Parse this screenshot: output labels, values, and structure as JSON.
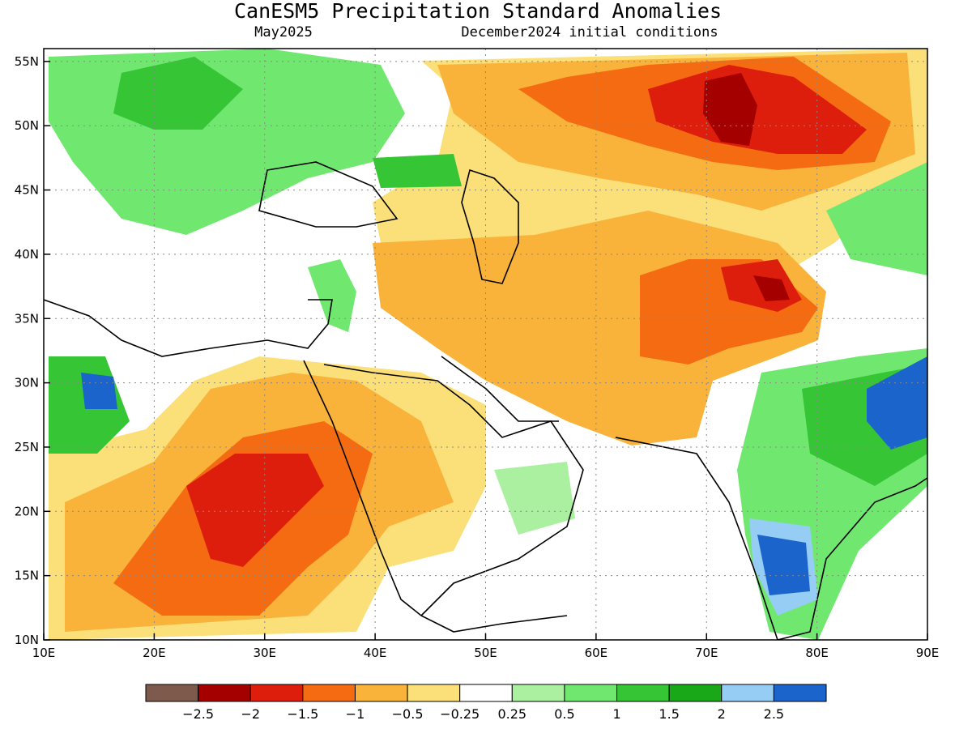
{
  "title": "CanESM5 Precipitation Standard Anomalies",
  "subtitle_left": "May2025",
  "subtitle_right": "December2024 initial conditions",
  "map": {
    "lon_range": [
      10,
      90
    ],
    "lat_range": [
      10,
      56
    ],
    "lon_ticks": [
      "10E",
      "20E",
      "30E",
      "40E",
      "50E",
      "60E",
      "70E",
      "80E",
      "90E"
    ],
    "lat_ticks": [
      "10N",
      "15N",
      "20N",
      "25N",
      "30N",
      "35N",
      "40N",
      "45N",
      "50N",
      "55N"
    ],
    "lon_tick_values": [
      10,
      20,
      30,
      40,
      50,
      60,
      70,
      80,
      90
    ],
    "lat_tick_values": [
      10,
      15,
      20,
      25,
      30,
      35,
      40,
      45,
      50,
      55
    ],
    "grid": "dotted"
  },
  "colorbar": {
    "colors": [
      "#7d5a4c",
      "#a40000",
      "#de1e0c",
      "#f56b12",
      "#f9b23a",
      "#fbe07a",
      "#ffffff",
      "#aaf0a0",
      "#70e870",
      "#35c535",
      "#18a818",
      "#95cdf5",
      "#1a64cc"
    ],
    "labels": [
      "-2.5",
      "-2",
      "-1.5",
      "-1",
      "-0.5",
      "-0.25",
      "0.25",
      "0.5",
      "1",
      "1.5",
      "2",
      "2.5"
    ]
  }
}
